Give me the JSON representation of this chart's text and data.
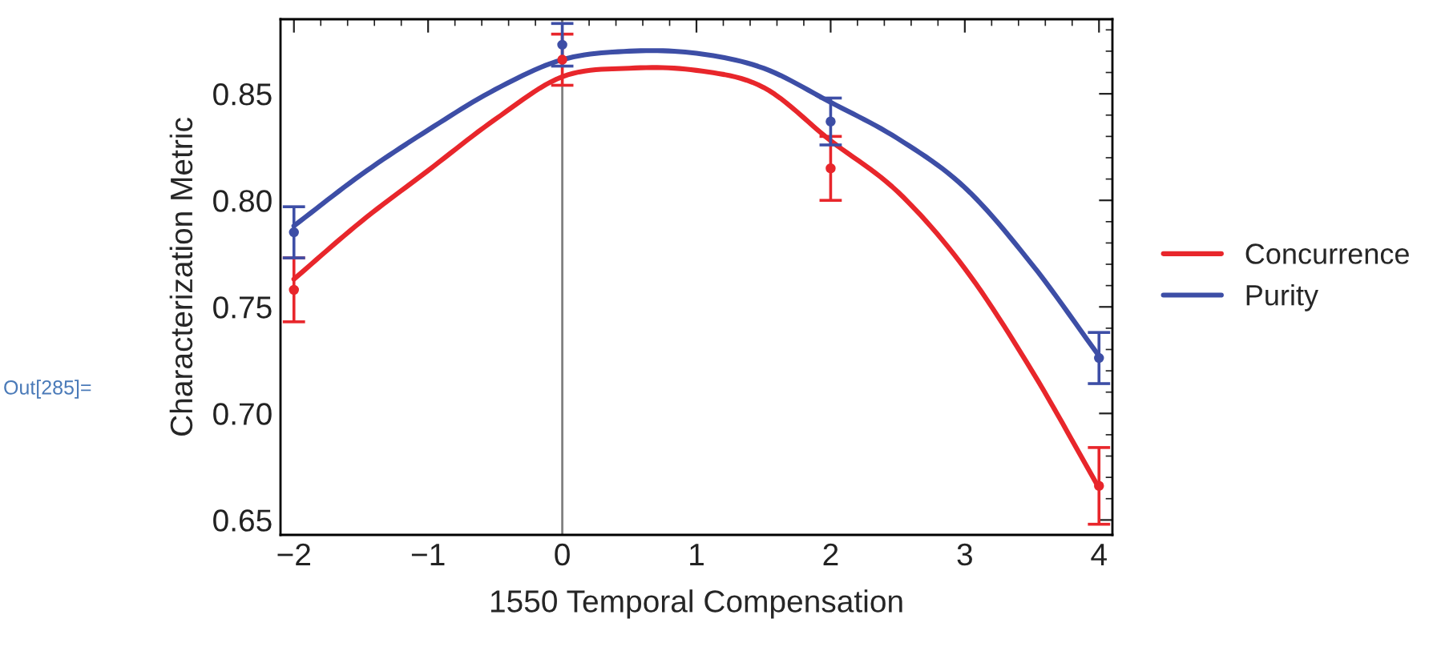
{
  "chart_data": {
    "type": "scatter",
    "xlabel": "1550 Temporal Compensation",
    "ylabel": "Characterization Metric",
    "xlim": [
      -2.1,
      4.1
    ],
    "xticks": [
      {
        "value": -2,
        "label": "−2"
      },
      {
        "value": -1,
        "label": "−1"
      },
      0,
      1,
      2,
      3,
      4
    ],
    "ylim": [
      0.643,
      0.885
    ],
    "yticks": [
      {
        "value": 0.65,
        "label": "0.65"
      },
      {
        "value": 0.7,
        "label": "0.70"
      },
      {
        "value": 0.75,
        "label": "0.75"
      },
      {
        "value": 0.8,
        "label": "0.80"
      },
      {
        "value": 0.85,
        "label": "0.85"
      }
    ],
    "grid": false,
    "legend": "right",
    "annotations": [
      "Out[285]="
    ],
    "ref_lines": [
      {
        "axis": "x",
        "value": 0,
        "color": "#808080"
      }
    ],
    "series": [
      {
        "marker": "circle",
        "color": "#e8262b",
        "x": [
          -2,
          0,
          2,
          4
        ],
        "values": [
          0.758,
          0.866,
          0.815,
          0.666
        ],
        "errors": [
          0.015,
          0.012,
          0.015,
          0.018
        ]
      },
      {
        "marker": "circle",
        "color": "#3d4ea6",
        "x": [
          -2,
          0,
          2,
          4
        ],
        "values": [
          0.785,
          0.873,
          0.837,
          0.726
        ],
        "errors": [
          0.012,
          0.01,
          0.011,
          0.012
        ]
      },
      {
        "type": "line",
        "name": "Concurrence",
        "color": "#e8262b",
        "x": [
          -2,
          -1.5,
          -1,
          -0.5,
          0,
          0.5,
          1,
          1.5,
          2,
          2.5,
          3,
          3.5,
          4
        ],
        "values": [
          0.763,
          0.79,
          0.814,
          0.838,
          0.858,
          0.862,
          0.861,
          0.853,
          0.828,
          0.804,
          0.768,
          0.72,
          0.665
        ]
      },
      {
        "type": "line",
        "name": "Purity",
        "color": "#3d4ea6",
        "x": [
          -2,
          -1.5,
          -1,
          -0.5,
          0,
          0.5,
          1,
          1.5,
          2,
          2.5,
          3,
          3.5,
          4
        ],
        "values": [
          0.788,
          0.812,
          0.833,
          0.852,
          0.866,
          0.87,
          0.869,
          0.862,
          0.846,
          0.829,
          0.806,
          0.77,
          0.727
        ]
      }
    ]
  }
}
